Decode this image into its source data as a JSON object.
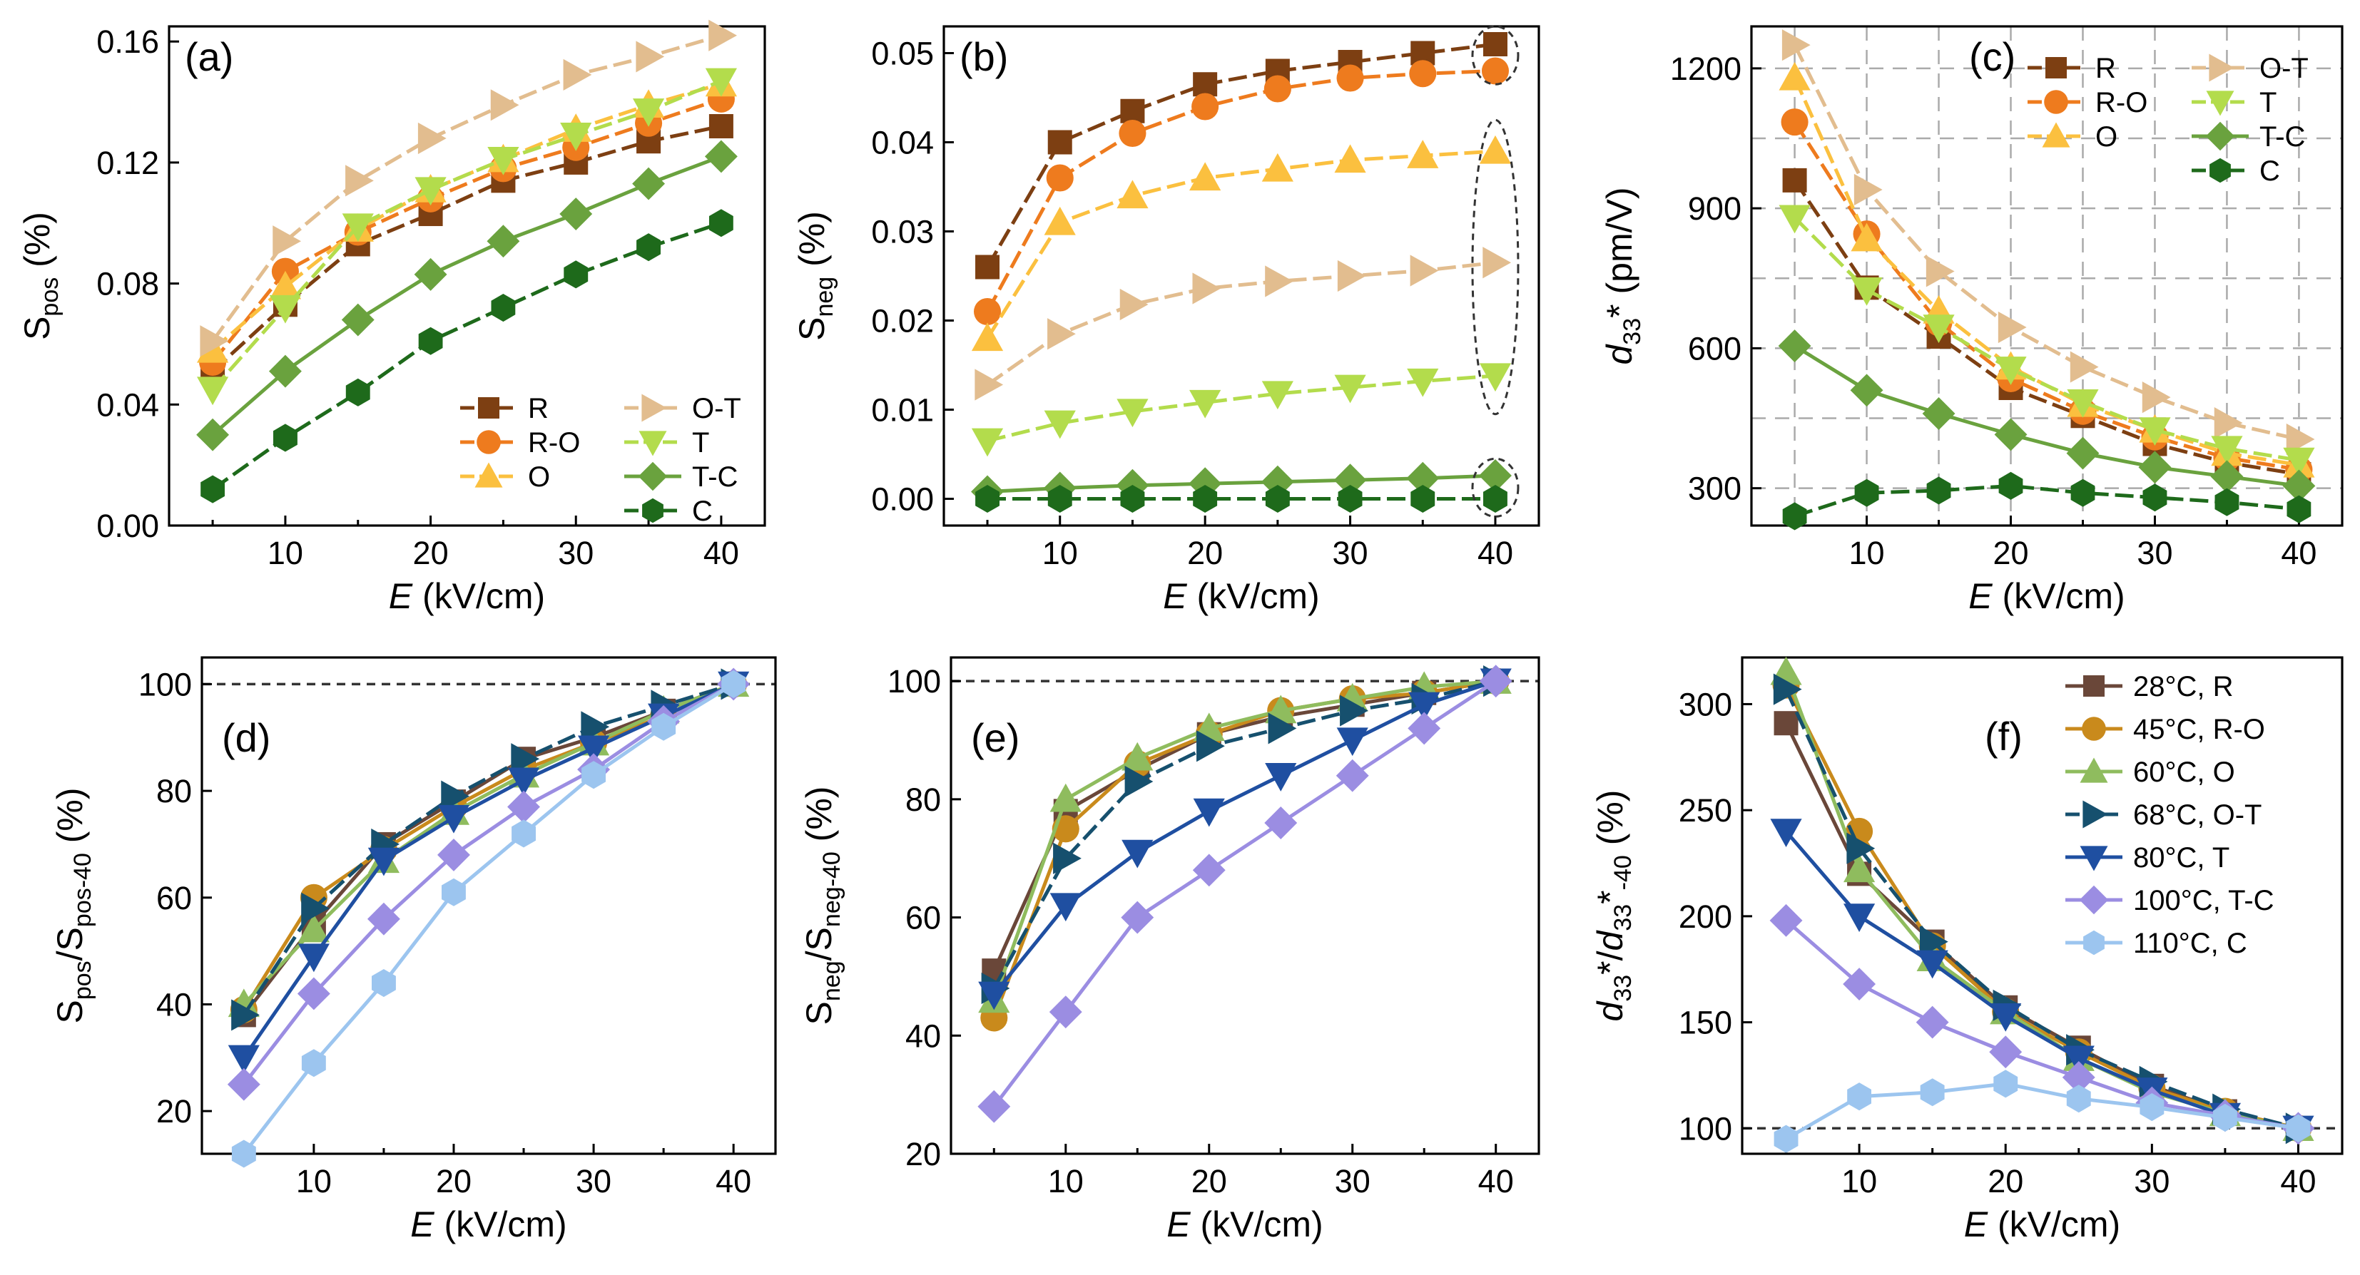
{
  "figure": {
    "x_label": "kV/cm",
    "x_label_var": "E"
  },
  "chart_data": [
    {
      "id": "a",
      "type": "line",
      "tag": "(a)",
      "ylabel": {
        "main": "S",
        "sub": "pos",
        "unit": " (%)"
      },
      "xlim": [
        2,
        43
      ],
      "ylim": [
        0,
        0.165
      ],
      "xticks": [
        10,
        20,
        30,
        40
      ],
      "yticks": [
        0,
        0.04,
        0.08,
        0.12,
        0.16
      ],
      "yticklabels": [
        "0.00",
        "0.04",
        "0.08",
        "0.12",
        "0.16"
      ],
      "grid": false,
      "x": [
        5,
        10,
        15,
        20,
        25,
        30,
        35,
        40
      ],
      "series": [
        {
          "name": "R",
          "marker": "square",
          "dash": "dash",
          "color": "#7d3f12",
          "values": [
            0.051,
            0.073,
            0.093,
            0.103,
            0.114,
            0.12,
            0.127,
            0.132
          ]
        },
        {
          "name": "R-O",
          "marker": "circle",
          "dash": "dash",
          "color": "#ee7b1e",
          "values": [
            0.054,
            0.084,
            0.097,
            0.108,
            0.118,
            0.125,
            0.133,
            0.141
          ]
        },
        {
          "name": "O",
          "marker": "triangle-up",
          "dash": "dash",
          "color": "#fbc03f",
          "values": [
            0.058,
            0.079,
            0.098,
            0.111,
            0.121,
            0.131,
            0.139,
            0.146
          ]
        },
        {
          "name": "O-T",
          "marker": "triangle-right",
          "dash": "dash",
          "color": "#e2bd8f",
          "values": [
            0.061,
            0.094,
            0.114,
            0.128,
            0.139,
            0.149,
            0.155,
            0.162
          ]
        },
        {
          "name": "T",
          "marker": "triangle-down",
          "dash": "dash",
          "color": "#b3dc4c",
          "values": [
            0.045,
            0.072,
            0.099,
            0.111,
            0.121,
            0.129,
            0.137,
            0.147
          ]
        },
        {
          "name": "T-C",
          "marker": "diamond",
          "dash": "solid",
          "color": "#6aa23e",
          "values": [
            0.03,
            0.051,
            0.068,
            0.083,
            0.094,
            0.103,
            0.113,
            0.122
          ]
        },
        {
          "name": "C",
          "marker": "hexagon",
          "dash": "dash",
          "color": "#1e6a1b",
          "values": [
            0.012,
            0.029,
            0.044,
            0.061,
            0.072,
            0.083,
            0.092,
            0.1
          ]
        }
      ],
      "legend": {
        "placement": "bottom-right",
        "columns": [
          [
            "R",
            "R-O",
            "O"
          ],
          [
            "O-T",
            "T",
            "T-C",
            "C"
          ]
        ]
      }
    },
    {
      "id": "b",
      "type": "line",
      "tag": "(b)",
      "ylabel": {
        "main": "S",
        "sub": "neg",
        "unit": " (%)"
      },
      "xlim": [
        2,
        43
      ],
      "ylim": [
        -0.003,
        0.053
      ],
      "xticks": [
        10,
        20,
        30,
        40
      ],
      "yticks": [
        0,
        0.01,
        0.02,
        0.03,
        0.04,
        0.05
      ],
      "yticklabels": [
        "0.00",
        "0.01",
        "0.02",
        "0.03",
        "0.04",
        "0.05"
      ],
      "grid": false,
      "x": [
        5,
        10,
        15,
        20,
        25,
        30,
        35,
        40
      ],
      "series": [
        {
          "name": "R",
          "marker": "square",
          "dash": "dash",
          "color": "#7d3f12",
          "values": [
            0.026,
            0.04,
            0.0435,
            0.0465,
            0.048,
            0.049,
            0.05,
            0.051
          ]
        },
        {
          "name": "R-O",
          "marker": "circle",
          "dash": "dash",
          "color": "#ee7b1e",
          "values": [
            0.021,
            0.036,
            0.041,
            0.044,
            0.046,
            0.0472,
            0.0477,
            0.048
          ]
        },
        {
          "name": "O",
          "marker": "triangle-up",
          "dash": "dash",
          "color": "#fbc03f",
          "values": [
            0.018,
            0.031,
            0.034,
            0.036,
            0.037,
            0.038,
            0.0385,
            0.039
          ]
        },
        {
          "name": "O-T",
          "marker": "triangle-right",
          "dash": "dash",
          "color": "#e2bd8f",
          "values": [
            0.0128,
            0.0185,
            0.0218,
            0.0236,
            0.0244,
            0.025,
            0.0256,
            0.0265
          ]
        },
        {
          "name": "T",
          "marker": "triangle-down",
          "dash": "dash",
          "color": "#b3dc4c",
          "values": [
            0.0065,
            0.0085,
            0.0098,
            0.0108,
            0.0118,
            0.0125,
            0.0132,
            0.0138
          ]
        },
        {
          "name": "T-C",
          "marker": "diamond",
          "dash": "solid",
          "color": "#6aa23e",
          "values": [
            0.0008,
            0.0012,
            0.0015,
            0.0017,
            0.0019,
            0.0021,
            0.0023,
            0.0026
          ]
        },
        {
          "name": "C",
          "marker": "hexagon",
          "dash": "dash",
          "color": "#1e6a1b",
          "values": [
            0.0,
            0.0,
            0.0,
            0.0,
            0.0,
            0.0,
            0.0,
            0.0
          ]
        }
      ],
      "highlights": [
        {
          "x": 40,
          "y0": 0.0465,
          "y1": 0.053
        },
        {
          "x": 40,
          "y0": 0.0095,
          "y1": 0.0425
        },
        {
          "x": 40,
          "y0": -0.002,
          "y1": 0.0045
        }
      ]
    },
    {
      "id": "c",
      "type": "line",
      "tag": "(c)",
      "ylabel": {
        "main": "d",
        "sub": "33",
        "unit": "* (pm/V)",
        "italic": true
      },
      "xlim": [
        2,
        43
      ],
      "ylim": [
        220,
        1290
      ],
      "xticks": [
        10,
        20,
        30,
        40
      ],
      "yticks": [
        300,
        600,
        900,
        1200
      ],
      "yticklabels": [
        "300",
        "600",
        "900",
        "1200"
      ],
      "grid": true,
      "x": [
        5,
        10,
        15,
        20,
        25,
        30,
        35,
        40
      ],
      "series": [
        {
          "name": "R",
          "marker": "square",
          "dash": "dash",
          "color": "#7d3f12",
          "values": [
            960,
            730,
            625,
            515,
            455,
            395,
            355,
            330
          ]
        },
        {
          "name": "R-O",
          "marker": "circle",
          "dash": "dash",
          "color": "#ee7b1e",
          "values": [
            1085,
            845,
            655,
            535,
            465,
            410,
            365,
            340
          ]
        },
        {
          "name": "O",
          "marker": "triangle-up",
          "dash": "dash",
          "color": "#fbc03f",
          "values": [
            1180,
            835,
            680,
            560,
            480,
            425,
            375,
            350
          ]
        },
        {
          "name": "O-T",
          "marker": "triangle-right",
          "dash": "dash",
          "color": "#e2bd8f",
          "values": [
            1250,
            940,
            765,
            645,
            560,
            495,
            440,
            405
          ]
        },
        {
          "name": "T",
          "marker": "triangle-down",
          "dash": "dash",
          "color": "#b3dc4c",
          "values": [
            880,
            725,
            645,
            555,
            485,
            425,
            385,
            360
          ]
        },
        {
          "name": "T-C",
          "marker": "diamond",
          "dash": "solid",
          "color": "#6aa23e",
          "values": [
            605,
            510,
            460,
            415,
            375,
            345,
            325,
            305
          ]
        },
        {
          "name": "C",
          "marker": "hexagon",
          "dash": "dash",
          "color": "#1e6a1b",
          "values": [
            240,
            290,
            295,
            305,
            290,
            280,
            270,
            255
          ]
        }
      ],
      "legend": {
        "placement": "top-right",
        "columns": [
          [
            "R",
            "R-O",
            "O"
          ],
          [
            "O-T",
            "T",
            "T-C",
            "C"
          ]
        ]
      }
    },
    {
      "id": "d",
      "type": "line",
      "tag": "(d)",
      "ylabel": {
        "main": "S",
        "sub": "pos",
        "mid": "/",
        "main2": "S",
        "sub2": "pos-40",
        "unit": " (%)"
      },
      "xlim": [
        2,
        43
      ],
      "ylim": [
        12,
        105
      ],
      "xticks": [
        10,
        20,
        30,
        40
      ],
      "yticks": [
        20,
        40,
        60,
        80,
        100
      ],
      "yticklabels": [
        "20",
        "40",
        "60",
        "80",
        "100"
      ],
      "grid": false,
      "reference_line": 100,
      "x": [
        5,
        10,
        15,
        20,
        25,
        30,
        35,
        40
      ],
      "series": [
        {
          "name": "28°C, R",
          "marker": "square",
          "dash": "solid",
          "color": "#6a4739",
          "values": [
            38,
            55,
            70,
            78,
            86,
            90,
            95,
            100
          ]
        },
        {
          "name": "45°C, R-O",
          "marker": "circle",
          "dash": "solid",
          "color": "#c98a1c",
          "values": [
            39,
            60,
            69,
            77,
            84,
            89,
            94,
            100
          ]
        },
        {
          "name": "60°C, O",
          "marker": "triangle-up",
          "dash": "solid",
          "color": "#8fbc5e",
          "values": [
            40,
            54,
            67,
            76,
            83,
            89,
            95,
            100
          ]
        },
        {
          "name": "68°C, O-T",
          "marker": "triangle-right",
          "dash": "dash",
          "color": "#16506e",
          "values": [
            38,
            58,
            70,
            79,
            86,
            92,
            96,
            100
          ]
        },
        {
          "name": "80°C, T",
          "marker": "triangle-down",
          "dash": "solid",
          "color": "#1f4fa1",
          "values": [
            30,
            49,
            67,
            75,
            82,
            88,
            94,
            100
          ]
        },
        {
          "name": "100°C, T-C",
          "marker": "diamond",
          "dash": "solid",
          "color": "#9b8de2",
          "values": [
            25,
            42,
            56,
            68,
            77,
            84,
            93,
            100
          ]
        },
        {
          "name": "110°C, C",
          "marker": "hexagon",
          "dash": "solid",
          "color": "#9cc5ef",
          "values": [
            12,
            29,
            44,
            61,
            72,
            83,
            92,
            100
          ]
        }
      ]
    },
    {
      "id": "e",
      "type": "line",
      "tag": "(e)",
      "ylabel": {
        "main": "S",
        "sub": "neg",
        "mid": "/",
        "main2": "S",
        "sub2": "neg-40",
        "unit": " (%)"
      },
      "xlim": [
        2,
        43
      ],
      "ylim": [
        20,
        104
      ],
      "xticks": [
        10,
        20,
        30,
        40
      ],
      "yticks": [
        20,
        40,
        60,
        80,
        100
      ],
      "yticklabels": [
        "20",
        "40",
        "60",
        "80",
        "100"
      ],
      "grid": false,
      "reference_line": 100,
      "x": [
        5,
        10,
        15,
        20,
        25,
        30,
        35,
        40
      ],
      "series": [
        {
          "name": "28°C, R",
          "marker": "square",
          "dash": "solid",
          "color": "#6a4739",
          "values": [
            51,
            78,
            85,
            91,
            94,
            96,
            98,
            100
          ]
        },
        {
          "name": "45°C, R-O",
          "marker": "circle",
          "dash": "solid",
          "color": "#c98a1c",
          "values": [
            43,
            75,
            86,
            91,
            95,
            97,
            98,
            100
          ]
        },
        {
          "name": "60°C, O",
          "marker": "triangle-up",
          "dash": "solid",
          "color": "#8fbc5e",
          "values": [
            46,
            80,
            87,
            92,
            95,
            97,
            99,
            100
          ]
        },
        {
          "name": "68°C, O-T",
          "marker": "triangle-right",
          "dash": "dash",
          "color": "#16506e",
          "values": [
            48,
            70,
            83,
            89,
            92,
            95,
            97,
            100
          ]
        },
        {
          "name": "80°C, T",
          "marker": "triangle-down",
          "dash": "solid",
          "color": "#1f4fa1",
          "values": [
            47,
            62,
            71,
            78,
            84,
            90,
            96,
            100
          ]
        },
        {
          "name": "100°C, T-C",
          "marker": "diamond",
          "dash": "solid",
          "color": "#9b8de2",
          "values": [
            28,
            44,
            60,
            68,
            76,
            84,
            92,
            100
          ]
        }
      ]
    },
    {
      "id": "f",
      "type": "line",
      "tag": "(f)",
      "ylabel": {
        "main": "d",
        "sub": "33",
        "mid": "*/",
        "main2": "d",
        "sub2": "33",
        "tail": "*",
        "sub3": "-40",
        "unit": " (%)",
        "italic": true
      },
      "xlim": [
        2,
        43
      ],
      "ylim": [
        88,
        322
      ],
      "xticks": [
        10,
        20,
        30,
        40
      ],
      "yticks": [
        100,
        150,
        200,
        250,
        300
      ],
      "yticklabels": [
        "100",
        "150",
        "200",
        "250",
        "300"
      ],
      "grid": false,
      "reference_line": 100,
      "x": [
        5,
        10,
        15,
        20,
        25,
        30,
        35,
        40
      ],
      "series": [
        {
          "name": "28°C, R",
          "marker": "square",
          "dash": "solid",
          "color": "#6a4739",
          "values": [
            291,
            220,
            188,
            157,
            138,
            120,
            108,
            100
          ]
        },
        {
          "name": "45°C, R-O",
          "marker": "circle",
          "dash": "solid",
          "color": "#c98a1c",
          "values": [
            309,
            240,
            186,
            155,
            136,
            119,
            108,
            100
          ]
        },
        {
          "name": "60°C, O",
          "marker": "triangle-up",
          "dash": "solid",
          "color": "#8fbc5e",
          "values": [
            315,
            222,
            180,
            155,
            133,
            117,
            107,
            100
          ]
        },
        {
          "name": "68°C, O-T",
          "marker": "triangle-right",
          "dash": "dash",
          "color": "#16506e",
          "values": [
            307,
            232,
            188,
            158,
            137,
            122,
            109,
            100
          ]
        },
        {
          "name": "80°C, T",
          "marker": "triangle-down",
          "dash": "solid",
          "color": "#1f4fa1",
          "values": [
            240,
            200,
            178,
            153,
            133,
            118,
            106,
            100
          ]
        },
        {
          "name": "100°C, T-C",
          "marker": "diamond",
          "dash": "solid",
          "color": "#9b8de2",
          "values": [
            198,
            168,
            150,
            136,
            124,
            112,
            106,
            100
          ]
        },
        {
          "name": "110°C, C",
          "marker": "hexagon",
          "dash": "solid",
          "color": "#9cc5ef",
          "values": [
            95,
            115,
            117,
            121,
            114,
            110,
            105,
            100
          ]
        }
      ],
      "legend": {
        "placement": "top-right",
        "columns": [
          [
            "28°C, R",
            "45°C, R-O",
            "60°C, O",
            "68°C, O-T",
            "80°C, T",
            "100°C, T-C",
            "110°C, C"
          ]
        ]
      }
    }
  ]
}
